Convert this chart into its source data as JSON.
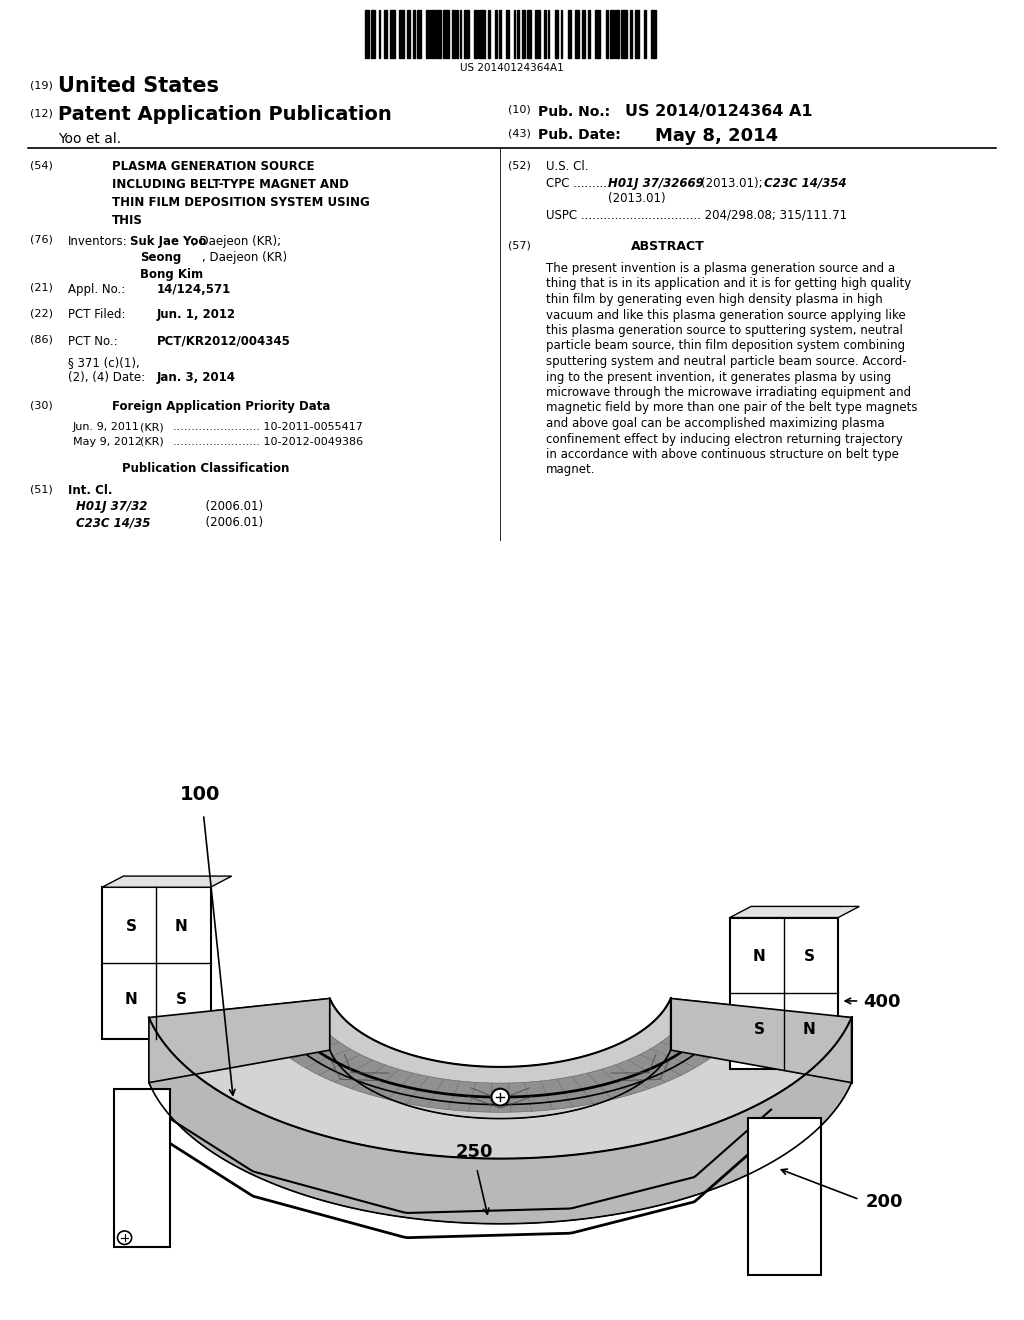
{
  "bg_color": "#ffffff",
  "barcode_text": "US 20140124364A1",
  "header": {
    "num19": "(19)",
    "united_states": "United States",
    "num12": "(12)",
    "patent_app": "Patent Application Publication",
    "inventor": "Yoo et al.",
    "num10": "(10)",
    "pub_no_label": "Pub. No.:",
    "pub_no": "US 2014/0124364 A1",
    "num43": "(43)",
    "pub_date_label": "Pub. Date:",
    "pub_date": "May 8, 2014"
  },
  "abstract": "The present invention is a plasma generation source and a thing that is in its application and it is for getting high quality thin film by generating even high density plasma in high vacuum and like this plasma generation source applying like this plasma generation source to sputtering system, neutral particle beam source, thin film deposition system combining sputtering system and neutral particle beam source. According to the present invention, it generates plasma by using microwave through the microwave irradiating equipment and magnetic field by more than one pair of the belt type magnets and above goal can be accomplished maximizing plasma confinement effect by inducing electron returning trajectory in accordance with above continuous structure on belt type magnet.",
  "diagram_labels": {
    "l100": "100",
    "l200": "200",
    "l250": "250",
    "l400": "400"
  }
}
